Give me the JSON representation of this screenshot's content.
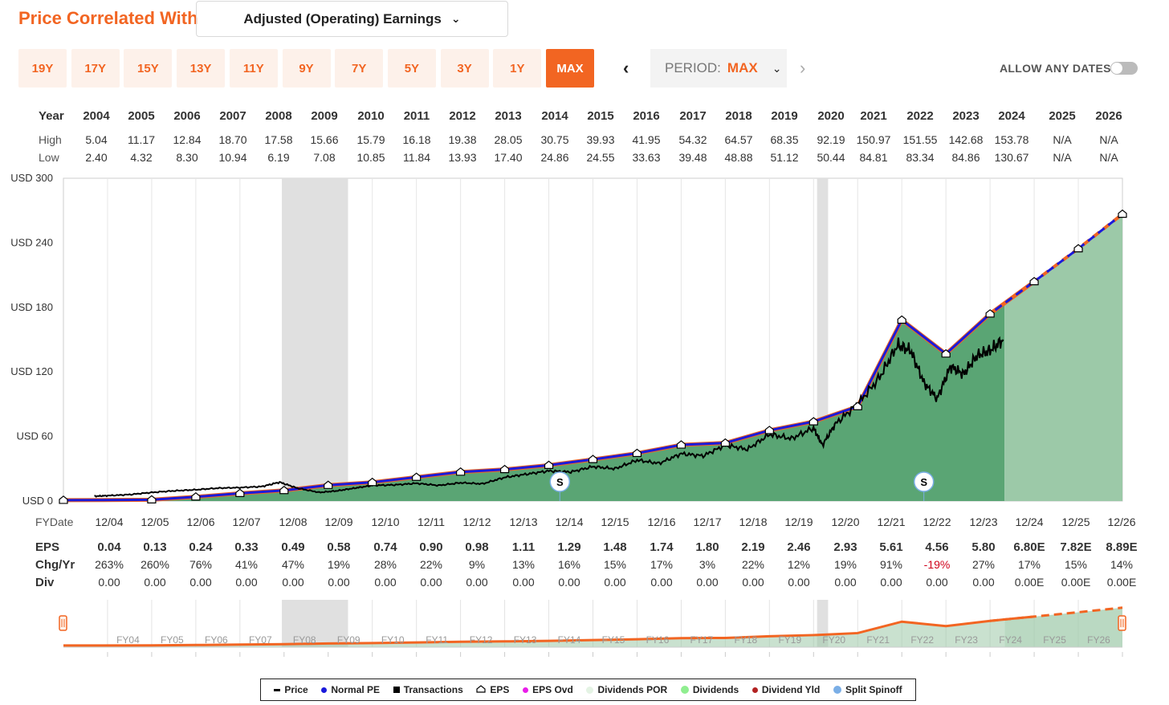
{
  "header": {
    "title": "Price Correlated With",
    "dropdown_value": "Adjusted (Operating) Earnings"
  },
  "year_buttons": [
    "19Y",
    "17Y",
    "15Y",
    "13Y",
    "11Y",
    "9Y",
    "7Y",
    "5Y",
    "3Y",
    "1Y",
    "MAX"
  ],
  "active_year_button": "MAX",
  "period": {
    "label": "PERIOD:",
    "value": "MAX"
  },
  "allow_any_dates": {
    "label": "ALLOW ANY DATES",
    "on": false
  },
  "price_table": {
    "year_label": "Year",
    "high_label": "High",
    "low_label": "Low",
    "years": [
      "2004",
      "2005",
      "2006",
      "2007",
      "2008",
      "2009",
      "2010",
      "2011",
      "2012",
      "2013",
      "2014",
      "2015",
      "2016",
      "2017",
      "2018",
      "2019",
      "2020",
      "2021",
      "2022",
      "2023",
      "2024",
      "2025",
      "2026"
    ],
    "high": [
      "5.04",
      "11.17",
      "12.84",
      "18.70",
      "17.58",
      "15.66",
      "15.79",
      "16.18",
      "19.38",
      "28.05",
      "30.75",
      "39.93",
      "41.95",
      "54.32",
      "64.57",
      "68.35",
      "92.19",
      "150.97",
      "151.55",
      "142.68",
      "153.78",
      "N/A",
      "N/A"
    ],
    "low": [
      "2.40",
      "4.32",
      "8.30",
      "10.94",
      "6.19",
      "7.08",
      "10.85",
      "11.84",
      "13.93",
      "17.40",
      "24.86",
      "24.55",
      "33.63",
      "39.48",
      "48.88",
      "51.12",
      "50.44",
      "84.81",
      "83.34",
      "84.86",
      "130.67",
      "N/A",
      "N/A"
    ]
  },
  "fy_table": {
    "fy_label": "FYDate",
    "eps_label": "EPS",
    "chg_label": "Chg/Yr",
    "div_label": "Div",
    "dates": [
      "12/04",
      "12/05",
      "12/06",
      "12/07",
      "12/08",
      "12/09",
      "12/10",
      "12/11",
      "12/12",
      "12/13",
      "12/14",
      "12/15",
      "12/16",
      "12/17",
      "12/18",
      "12/19",
      "12/20",
      "12/21",
      "12/22",
      "12/23",
      "12/24",
      "12/25",
      "12/26"
    ],
    "eps": [
      "0.04",
      "0.13",
      "0.24",
      "0.33",
      "0.49",
      "0.58",
      "0.74",
      "0.90",
      "0.98",
      "1.11",
      "1.29",
      "1.48",
      "1.74",
      "1.80",
      "2.19",
      "2.46",
      "2.93",
      "5.61",
      "4.56",
      "5.80",
      "6.80E",
      "7.82E",
      "8.89E"
    ],
    "chg": [
      "263%",
      "260%",
      "76%",
      "41%",
      "47%",
      "19%",
      "28%",
      "22%",
      "9%",
      "13%",
      "16%",
      "15%",
      "17%",
      "3%",
      "22%",
      "12%",
      "19%",
      "91%",
      "-19%",
      "27%",
      "17%",
      "15%",
      "14%"
    ],
    "div": [
      "0.00",
      "0.00",
      "0.00",
      "0.00",
      "0.00",
      "0.00",
      "0.00",
      "0.00",
      "0.00",
      "0.00",
      "0.00",
      "0.00",
      "0.00",
      "0.00",
      "0.00",
      "0.00",
      "0.00",
      "0.00",
      "0.00",
      "0.00",
      "0.00E",
      "0.00E",
      "0.00E"
    ]
  },
  "navigator": {
    "labels": [
      "FY04",
      "FY05",
      "FY06",
      "FY07",
      "FY08",
      "FY09",
      "FY10",
      "FY11",
      "FY12",
      "FY13",
      "FY14",
      "FY15",
      "FY16",
      "FY17",
      "FY18",
      "FY19",
      "FY20",
      "FY21",
      "FY22",
      "FY23",
      "FY24",
      "FY25",
      "FY26"
    ]
  },
  "legend": [
    "Price",
    "Normal PE",
    "Transactions",
    "EPS",
    "EPS Ovd",
    "Dividends POR",
    "Dividends",
    "Dividend Yld",
    "Split Spinoff"
  ],
  "colors": {
    "accent": "#f26522",
    "normal_pe": "#1a1adb",
    "eps_line": "#f26522",
    "area": "#5aa574",
    "area_forecast": "#9cc9a8",
    "recession": "#e0e0e0",
    "price": "#000000"
  },
  "chart_data": {
    "type": "line",
    "title": "",
    "ylabel": "USD",
    "ylim": [
      0,
      300
    ],
    "y_ticks": [
      "USD 0",
      "USD 60",
      "USD 120",
      "USD 180",
      "USD 240",
      "USD 300"
    ],
    "y_tick_values": [
      0,
      60,
      120,
      180,
      240,
      300
    ],
    "x_start": 2003.0,
    "x_end": 2027.0,
    "recessions": [
      [
        2007.95,
        2009.45
      ],
      [
        2020.08,
        2020.33
      ]
    ],
    "splits": [
      {
        "x": 2014.25,
        "label": "S"
      },
      {
        "x": 2022.5,
        "label": "S"
      }
    ],
    "forecast_start": 2024.33,
    "series": [
      {
        "name": "Normal PE (EPS x 30)",
        "x": [
          2003.0,
          2005.0,
          2006.0,
          2007.0,
          2008.0,
          2009.0,
          2010.0,
          2011.0,
          2012.0,
          2013.0,
          2014.0,
          2015.0,
          2016.0,
          2017.0,
          2018.0,
          2019.0,
          2020.0,
          2021.0,
          2022.0,
          2023.0,
          2024.0,
          2025.0,
          2026.0,
          2027.0
        ],
        "values": [
          0.8,
          1.2,
          3.9,
          7.2,
          9.9,
          14.7,
          17.4,
          22.2,
          27.0,
          29.4,
          33.3,
          38.7,
          44.4,
          52.2,
          54.0,
          65.7,
          73.8,
          87.9,
          168.3,
          136.8,
          174.0,
          204.0,
          234.6,
          266.7
        ]
      },
      {
        "name": "Price",
        "x": [
          2003.7,
          2004.0,
          2004.5,
          2005.0,
          2005.5,
          2006.0,
          2006.5,
          2007.0,
          2007.5,
          2007.9,
          2008.3,
          2008.8,
          2009.2,
          2009.6,
          2010.0,
          2010.5,
          2011.0,
          2011.5,
          2012.0,
          2012.5,
          2013.0,
          2013.5,
          2014.0,
          2014.5,
          2015.0,
          2015.5,
          2016.0,
          2016.5,
          2017.0,
          2017.5,
          2018.0,
          2018.5,
          2019.0,
          2019.5,
          2020.0,
          2020.2,
          2020.5,
          2021.0,
          2021.5,
          2021.9,
          2022.2,
          2022.5,
          2022.8,
          2023.1,
          2023.4,
          2023.7,
          2024.0,
          2024.3
        ],
        "values": [
          4.5,
          5.0,
          6.0,
          8.0,
          9.5,
          10.5,
          12.0,
          12.5,
          13.5,
          17.5,
          12.0,
          8.0,
          9.5,
          12.0,
          14.5,
          15.0,
          16.5,
          14.5,
          17.0,
          16.0,
          22.0,
          25.0,
          28.0,
          27.0,
          32.0,
          30.0,
          38.0,
          35.0,
          44.0,
          42.0,
          52.0,
          48.0,
          62.0,
          58.0,
          68.0,
          52.0,
          72.0,
          90.0,
          115.0,
          145.0,
          140.0,
          110.0,
          95.0,
          125.0,
          118.0,
          135.0,
          140.0,
          150.0
        ]
      },
      {
        "name": "EPS",
        "x": [
          2003.0,
          2005.0,
          2006.0,
          2007.0,
          2008.0,
          2009.0,
          2010.0,
          2011.0,
          2012.0,
          2013.0,
          2014.0,
          2015.0,
          2016.0,
          2017.0,
          2018.0,
          2019.0,
          2020.0,
          2021.0,
          2022.0,
          2023.0,
          2024.0,
          2025.0,
          2026.0,
          2027.0
        ],
        "values": [
          0.04,
          0.04,
          0.13,
          0.24,
          0.33,
          0.49,
          0.58,
          0.74,
          0.9,
          0.98,
          1.11,
          1.29,
          1.48,
          1.74,
          1.8,
          2.19,
          2.46,
          2.93,
          5.61,
          4.56,
          5.8,
          6.8,
          7.82,
          8.89
        ]
      }
    ]
  }
}
